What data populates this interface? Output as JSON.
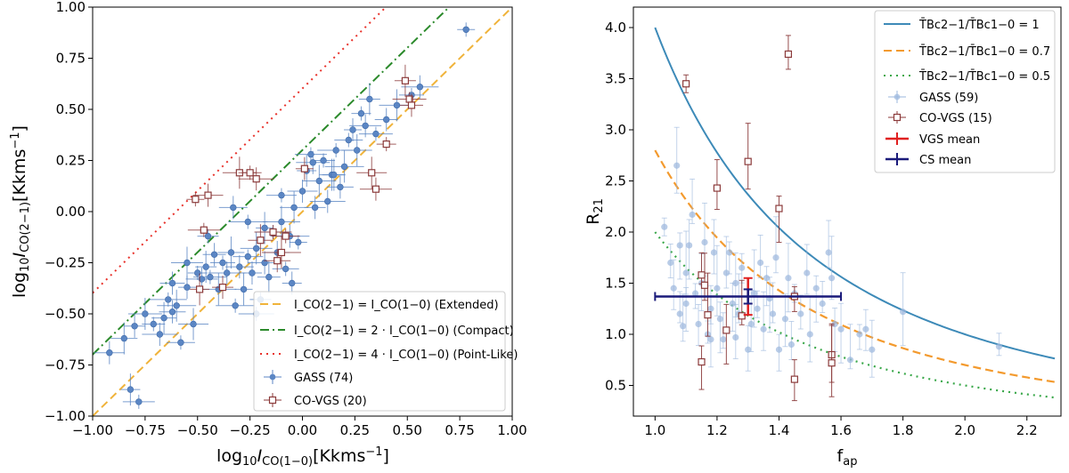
{
  "chart_data": [
    {
      "type": "scatter",
      "xlabel": "log10 I_CO(1-0) [Kkms^-1]",
      "ylabel": "log10 I_CO(2-1) [Kkms^-1]",
      "xlim": [
        -1.0,
        1.0
      ],
      "ylim": [
        -1.0,
        1.0
      ],
      "xticks": [
        "−1.00",
        "−0.75",
        "−0.50",
        "−0.25",
        "0.00",
        "0.25",
        "0.50",
        "0.75",
        "1.00"
      ],
      "yticks": [
        "−1.00",
        "−0.75",
        "−0.50",
        "−0.25",
        "0.00",
        "0.25",
        "0.50",
        "0.75",
        "1.00"
      ],
      "lines": [
        {
          "name": "I_CO(2-1) = I_CO(1-0) (Extended)",
          "label_main": "I_CO(2−1) = I_CO(1−0)",
          "label_tag": "(Extended)",
          "ratio": 1,
          "color": "#f0b33a",
          "style": "dashed"
        },
        {
          "name": "I_CO(2-1) = 2·I_CO(1-0) (Compact)",
          "label_main": "I_CO(2−1) = 2 · I_CO(1−0)",
          "label_tag": "(Compact)",
          "ratio": 2,
          "color": "#2b8a2b",
          "style": "dashdot"
        },
        {
          "name": "I_CO(2-1) = 4·I_CO(1-0) (Point-Like)",
          "label_main": "I_CO(2−1) = 4 · I_CO(1−0)",
          "label_tag": "(Point-Like)",
          "ratio": 4,
          "color": "#e8322b",
          "style": "dotted"
        }
      ],
      "series": [
        {
          "name": "GASS (74)",
          "color": "#5b86c4",
          "marker": "circle",
          "points": [
            [
              0.78,
              0.89
            ],
            [
              -0.92,
              -0.69
            ],
            [
              -0.82,
              -0.87
            ],
            [
              -0.78,
              -0.93
            ],
            [
              -0.8,
              -0.56
            ],
            [
              -0.75,
              -0.5
            ],
            [
              -0.71,
              -0.55
            ],
            [
              -0.68,
              -0.6
            ],
            [
              -0.66,
              -0.52
            ],
            [
              -0.64,
              -0.43
            ],
            [
              -0.62,
              -0.49
            ],
            [
              -0.6,
              -0.46
            ],
            [
              -0.58,
              -0.64
            ],
            [
              -0.55,
              -0.37
            ],
            [
              -0.52,
              -0.55
            ],
            [
              -0.5,
              -0.3
            ],
            [
              -0.48,
              -0.33
            ],
            [
              -0.46,
              -0.27
            ],
            [
              -0.44,
              -0.32
            ],
            [
              -0.42,
              -0.21
            ],
            [
              -0.4,
              -0.38
            ],
            [
              -0.38,
              -0.25
            ],
            [
              -0.36,
              -0.3
            ],
            [
              -0.34,
              -0.2
            ],
            [
              -0.32,
              -0.46
            ],
            [
              -0.3,
              -0.27
            ],
            [
              -0.28,
              -0.38
            ],
            [
              -0.26,
              -0.22
            ],
            [
              -0.24,
              -0.3
            ],
            [
              -0.22,
              -0.18
            ],
            [
              -0.2,
              -0.43
            ],
            [
              -0.18,
              -0.25
            ],
            [
              -0.16,
              -0.32
            ],
            [
              -0.14,
              -0.1
            ],
            [
              -0.12,
              -0.2
            ],
            [
              -0.1,
              -0.05
            ],
            [
              -0.08,
              -0.28
            ],
            [
              -0.06,
              -0.12
            ],
            [
              -0.04,
              0.02
            ],
            [
              -0.02,
              -0.15
            ],
            [
              0.0,
              0.1
            ],
            [
              0.02,
              0.2
            ],
            [
              0.04,
              0.28
            ],
            [
              0.06,
              0.02
            ],
            [
              0.08,
              0.15
            ],
            [
              0.1,
              0.25
            ],
            [
              0.12,
              0.05
            ],
            [
              0.14,
              0.18
            ],
            [
              0.16,
              0.3
            ],
            [
              0.18,
              0.12
            ],
            [
              0.2,
              0.22
            ],
            [
              0.22,
              0.35
            ],
            [
              0.24,
              0.4
            ],
            [
              0.26,
              0.3
            ],
            [
              0.28,
              0.48
            ],
            [
              0.3,
              0.42
            ],
            [
              0.32,
              0.55
            ],
            [
              0.35,
              0.38
            ],
            [
              0.4,
              0.45
            ],
            [
              0.45,
              0.52
            ],
            [
              0.52,
              0.57
            ],
            [
              0.56,
              0.61
            ],
            [
              -0.85,
              -0.62
            ],
            [
              -0.26,
              -0.05
            ],
            [
              -0.33,
              0.02
            ],
            [
              -0.18,
              -0.08
            ],
            [
              -0.1,
              0.08
            ],
            [
              -0.05,
              -0.35
            ],
            [
              -0.55,
              -0.25
            ],
            [
              -0.45,
              -0.12
            ],
            [
              0.05,
              0.24
            ],
            [
              0.15,
              0.18
            ],
            [
              -0.22,
              -0.5
            ],
            [
              -0.62,
              -0.35
            ]
          ]
        },
        {
          "name": "CO-VGS (20)",
          "color": "#8b3a3a",
          "marker": "open-square",
          "points": [
            [
              -0.51,
              0.06
            ],
            [
              -0.45,
              0.08
            ],
            [
              -0.49,
              -0.38
            ],
            [
              -0.47,
              -0.09
            ],
            [
              -0.38,
              -0.37
            ],
            [
              -0.3,
              0.19
            ],
            [
              -0.25,
              0.19
            ],
            [
              -0.22,
              0.16
            ],
            [
              -0.2,
              -0.14
            ],
            [
              -0.14,
              -0.1
            ],
            [
              -0.12,
              -0.24
            ],
            [
              -0.1,
              -0.2
            ],
            [
              -0.08,
              -0.12
            ],
            [
              0.01,
              0.21
            ],
            [
              0.33,
              0.19
            ],
            [
              0.4,
              0.33
            ],
            [
              0.35,
              0.11
            ],
            [
              0.49,
              0.64
            ],
            [
              0.51,
              0.55
            ],
            [
              0.52,
              0.52
            ]
          ]
        }
      ],
      "legend_position": "lower-right"
    },
    {
      "type": "line+scatter",
      "xlabel": "f_ap",
      "ylabel": "R_21",
      "xlim": [
        0.93,
        2.31
      ],
      "ylim": [
        0.2,
        4.2
      ],
      "xticks": [
        "1.0",
        "1.2",
        "1.4",
        "1.6",
        "1.8",
        "2.0",
        "2.2"
      ],
      "yticks": [
        "0.5",
        "1.0",
        "1.5",
        "2.0",
        "2.5",
        "3.0",
        "3.5",
        "4.0"
      ],
      "curves": [
        {
          "name": "T_Bc2-1/T_Bc1-0 = 1",
          "label_main": "T̄Bc2−1/T̄Bc1−0 = 1",
          "ratio": 1.0,
          "color": "#3d8ab8",
          "style": "solid"
        },
        {
          "name": "T_Bc2-1/T_Bc1-0 = 0.7",
          "label_main": "T̄Bc2−1/T̄Bc1−0 = 0.7",
          "ratio": 0.7,
          "color": "#f39a2e",
          "style": "dashed"
        },
        {
          "name": "T_Bc2-1/T_Bc1-0 = 0.5",
          "label_main": "T̄Bc2−1/T̄Bc1−0 = 0.5",
          "ratio": 0.5,
          "color": "#3aa84a",
          "style": "dotted"
        }
      ],
      "series": [
        {
          "name": "GASS (59)",
          "color": "#9bb7dd",
          "marker": "circle",
          "points": [
            [
              1.03,
              2.05
            ],
            [
              1.05,
              1.7
            ],
            [
              1.06,
              1.45
            ],
            [
              1.07,
              2.65
            ],
            [
              1.08,
              1.87
            ],
            [
              1.08,
              1.2
            ],
            [
              1.09,
              1.08
            ],
            [
              1.1,
              1.6
            ],
            [
              1.1,
              1.3
            ],
            [
              1.11,
              1.87
            ],
            [
              1.12,
              2.17
            ],
            [
              1.13,
              1.4
            ],
            [
              1.14,
              1.1
            ],
            [
              1.15,
              1.5
            ],
            [
              1.16,
              1.9
            ],
            [
              1.17,
              1.0
            ],
            [
              1.18,
              1.25
            ],
            [
              1.19,
              1.8
            ],
            [
              1.2,
              1.45
            ],
            [
              1.21,
              1.15
            ],
            [
              1.22,
              0.95
            ],
            [
              1.23,
              1.6
            ],
            [
              1.24,
              1.8
            ],
            [
              1.25,
              1.3
            ],
            [
              1.26,
              1.5
            ],
            [
              1.27,
              1.2
            ],
            [
              1.28,
              1.65
            ],
            [
              1.3,
              0.85
            ],
            [
              1.31,
              1.1
            ],
            [
              1.32,
              1.4
            ],
            [
              1.33,
              1.25
            ],
            [
              1.34,
              1.7
            ],
            [
              1.35,
              1.05
            ],
            [
              1.36,
              1.55
            ],
            [
              1.37,
              1.35
            ],
            [
              1.38,
              1.2
            ],
            [
              1.39,
              1.75
            ],
            [
              1.4,
              0.85
            ],
            [
              1.42,
              1.15
            ],
            [
              1.43,
              1.55
            ],
            [
              1.45,
              1.4
            ],
            [
              1.47,
              1.2
            ],
            [
              1.49,
              1.6
            ],
            [
              1.5,
              1.0
            ],
            [
              1.52,
              1.45
            ],
            [
              1.54,
              1.3
            ],
            [
              1.56,
              1.8
            ],
            [
              1.57,
              1.55
            ],
            [
              1.58,
              1.1
            ],
            [
              1.6,
              1.05
            ],
            [
              1.63,
              0.75
            ],
            [
              1.66,
              1.0
            ],
            [
              1.68,
              1.05
            ],
            [
              1.7,
              0.85
            ],
            [
              1.8,
              1.22
            ],
            [
              2.11,
              0.88
            ],
            [
              1.44,
              0.9
            ],
            [
              1.26,
              0.97
            ],
            [
              1.18,
              0.95
            ]
          ]
        },
        {
          "name": "CO-VGS (15)",
          "color": "#8b3a3a",
          "marker": "open-square",
          "points": [
            [
              1.1,
              3.45
            ],
            [
              1.43,
              3.74
            ],
            [
              1.2,
              2.43
            ],
            [
              1.3,
              2.69
            ],
            [
              1.4,
              2.23
            ],
            [
              1.15,
              1.58
            ],
            [
              1.16,
              1.48
            ],
            [
              1.17,
              1.19
            ],
            [
              1.15,
              0.73
            ],
            [
              1.23,
              1.04
            ],
            [
              1.28,
              1.18
            ],
            [
              1.45,
              1.37
            ],
            [
              1.45,
              0.56
            ],
            [
              1.57,
              0.8
            ],
            [
              1.57,
              0.72
            ]
          ]
        }
      ],
      "mean_markers": [
        {
          "name": "VGS mean",
          "x": 1.3,
          "y": 1.37,
          "xerr": 0.0,
          "yerr": 0.18,
          "color": "#e02020"
        },
        {
          "name": "CS mean",
          "x": 1.3,
          "y": 1.37,
          "xerr": 0.3,
          "yerr": 0.07,
          "color": "#1a1a7a"
        }
      ],
      "legend_position": "upper-right"
    }
  ]
}
